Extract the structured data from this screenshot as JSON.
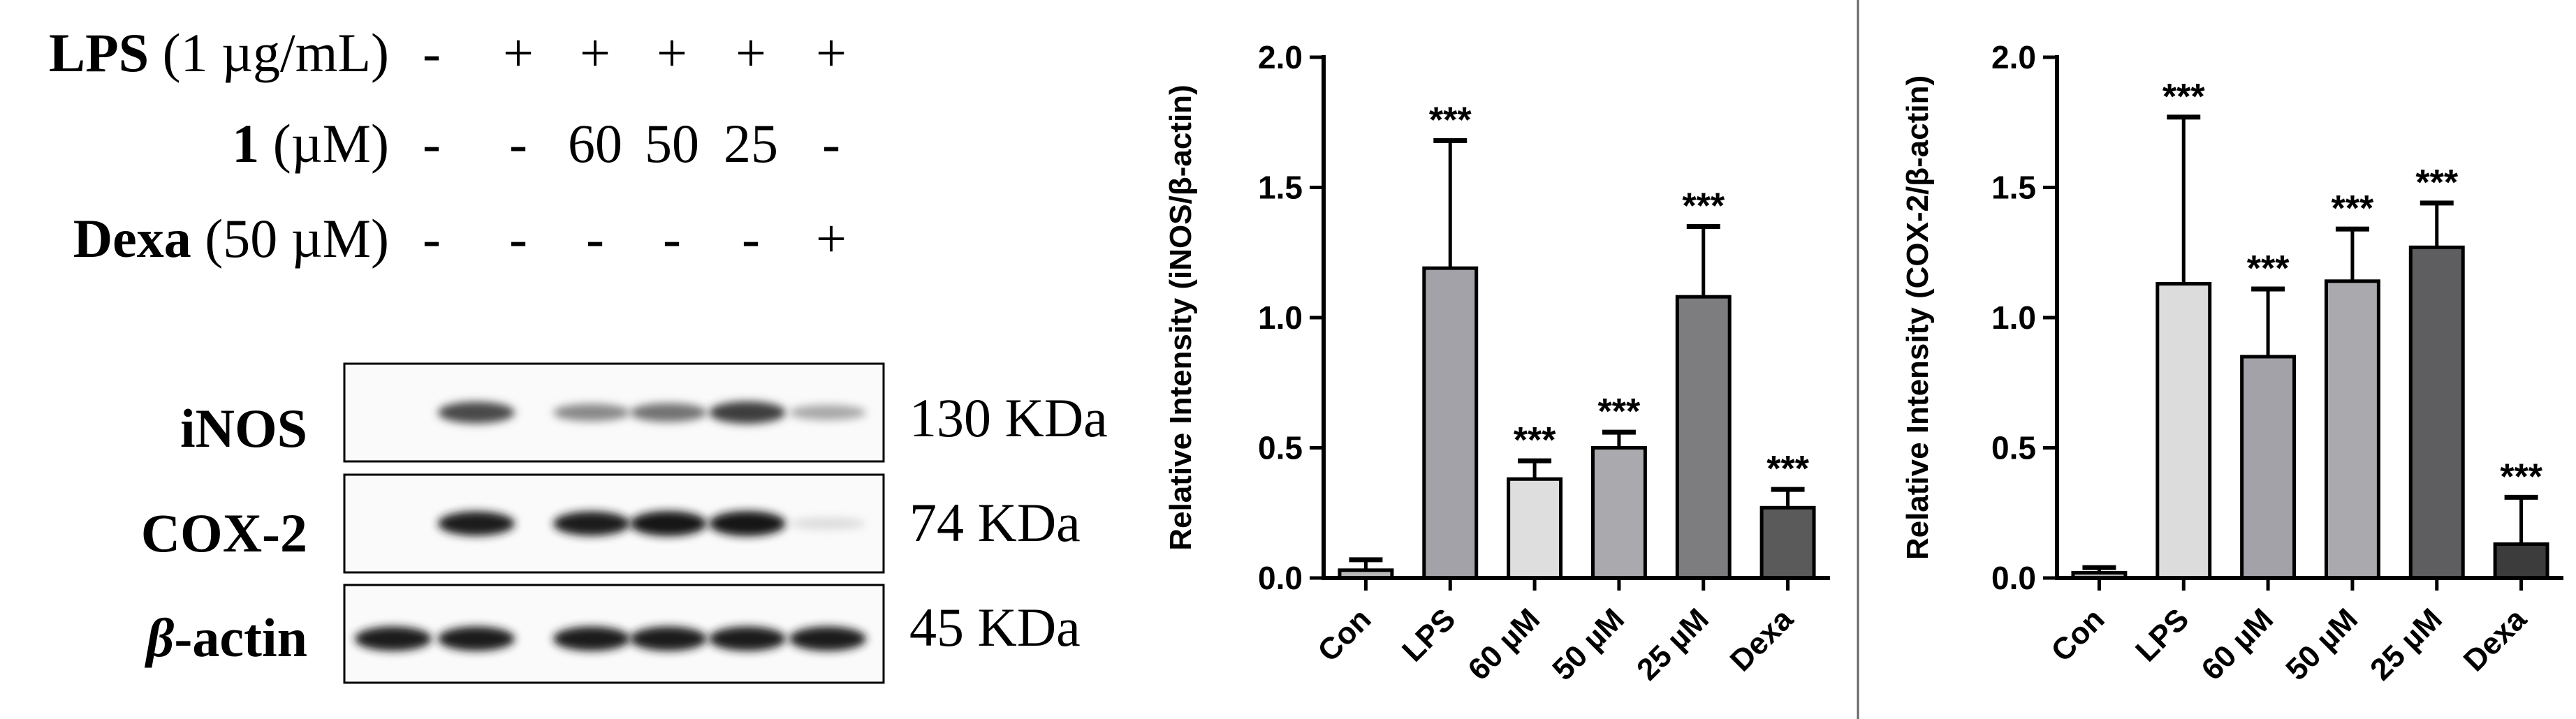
{
  "treatment_table": {
    "rows": [
      {
        "bold": "LPS",
        "rest": " (1 µg/mL)",
        "marks": [
          "-",
          "+",
          "+",
          "+",
          "+",
          "+"
        ]
      },
      {
        "bold": "1",
        "rest": " (µM)",
        "marks": [
          "-",
          "-",
          "60",
          "50",
          "25",
          "-"
        ]
      },
      {
        "bold": "Dexa",
        "rest": " (50 µM)",
        "marks": [
          "-",
          "-",
          "-",
          "-",
          "-",
          "+"
        ]
      }
    ]
  },
  "blot": {
    "bands": [
      {
        "label": "iNOS",
        "size": "130 KDa",
        "intensity": [
          0.0,
          0.75,
          0.45,
          0.55,
          0.8,
          0.3
        ]
      },
      {
        "label": "COX-2",
        "size": "74 KDa",
        "intensity": [
          0.0,
          0.95,
          0.95,
          1.0,
          1.0,
          0.05
        ]
      },
      {
        "label_bold_italic": "β",
        "label": "-actin",
        "size": "45 KDa",
        "intensity": [
          0.95,
          0.95,
          0.95,
          0.95,
          0.95,
          0.95
        ]
      }
    ]
  },
  "chart_data": [
    {
      "type": "bar",
      "categories": [
        "Con",
        "LPS",
        "60 µM",
        "50 µM",
        "25 µM",
        "Dexa"
      ],
      "values": [
        0.03,
        1.19,
        0.38,
        0.5,
        1.08,
        0.27
      ],
      "errors": [
        0.04,
        0.49,
        0.07,
        0.06,
        0.27,
        0.07
      ],
      "significance": [
        "",
        "***",
        "***",
        "***",
        "***",
        "***"
      ],
      "bar_colors": [
        "#b9b9b9",
        "#a2a2a8",
        "#dedede",
        "#a9a9ae",
        "#7d7d80",
        "#5a5a5a"
      ],
      "ylabel": "Relative Intensity (iNOS/β-actin)",
      "ylim": [
        0,
        2.0
      ],
      "yticks": [
        "0.0",
        "0.5",
        "1.0",
        "1.5",
        "2.0"
      ],
      "grid": false
    },
    {
      "type": "bar",
      "categories": [
        "Con",
        "LPS",
        "60 µM",
        "50 µM",
        "25 µM",
        "Dexa"
      ],
      "values": [
        0.02,
        1.13,
        0.85,
        1.14,
        1.27,
        0.13
      ],
      "errors": [
        0.02,
        0.64,
        0.26,
        0.2,
        0.17,
        0.18
      ],
      "significance": [
        "",
        "***",
        "***",
        "***",
        "***",
        "***"
      ],
      "bar_colors": [
        "#b9b9b9",
        "#dcdcdc",
        "#a2a2a8",
        "#a9a9ae",
        "#5e5e60",
        "#3c3c3c"
      ],
      "ylabel": "Relative Intensity (COX-2/β-actin)",
      "ylim": [
        0,
        2.0
      ],
      "yticks": [
        "0.0",
        "0.5",
        "1.0",
        "1.5",
        "2.0"
      ],
      "grid": false
    }
  ]
}
